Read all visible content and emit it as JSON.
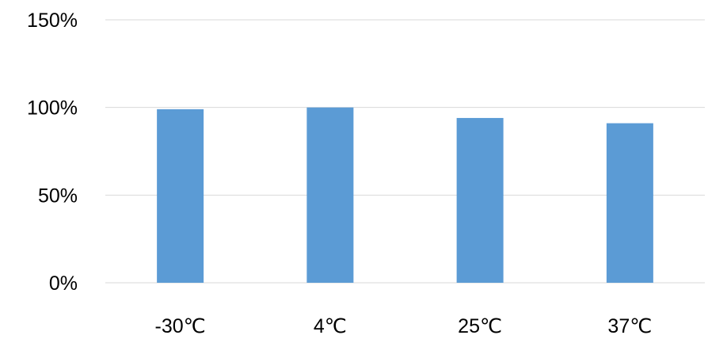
{
  "chart_data": {
    "type": "bar",
    "categories": [
      "-30℃",
      "4℃",
      "25℃",
      "37℃"
    ],
    "values": [
      0.99,
      1.0,
      0.94,
      0.91
    ],
    "ylim": [
      0,
      1.5
    ],
    "yticks": [
      0,
      0.5,
      1.0,
      1.5
    ],
    "ytick_labels": [
      "0%",
      "50%",
      "100%",
      "150%"
    ],
    "grid": true,
    "bar_color": "#5b9bd5",
    "grid_color": "#d9d9d9"
  }
}
